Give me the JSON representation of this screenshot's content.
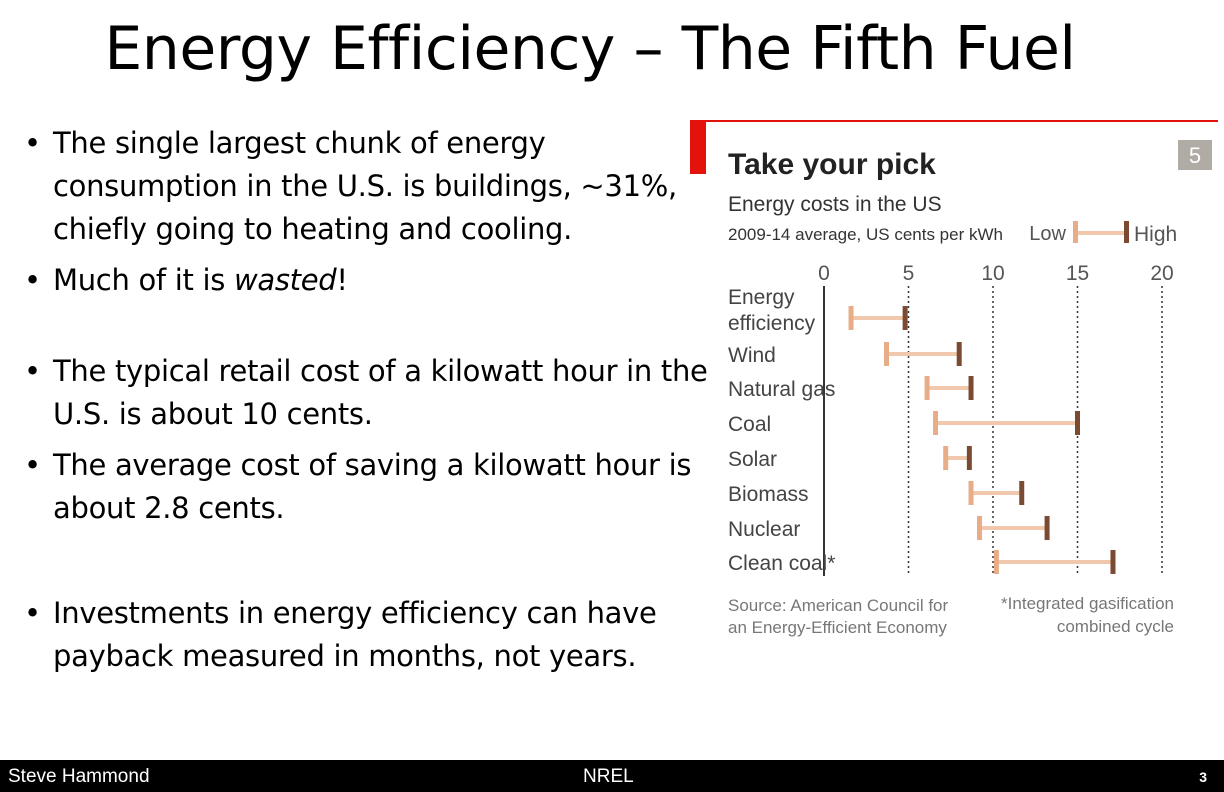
{
  "slide": {
    "title": "Energy Efficiency – The Fifth Fuel",
    "bullets": {
      "b1": "The single largest chunk of energy consumption in the U.S. is buildings, ~31%, chiefly going to heating and cooling.",
      "b2_pre": "Much of it is ",
      "b2_em": "wasted",
      "b2_post": "!",
      "b3": "The typical retail cost of a kilowatt hour in the U.S. is about 10 cents.",
      "b4": "The average cost of saving a kilowatt hour is about 2.8 cents.",
      "b5": "Investments in energy efficiency can have payback measured in months, not years."
    }
  },
  "footer": {
    "author": "Steve Hammond",
    "org": "NREL",
    "page": "3"
  },
  "chart_data": {
    "type": "range",
    "figure_number": "5",
    "title": "Take your pick",
    "subtitle": "Energy costs in the US",
    "units": "2009-14 average, US cents per kWh",
    "legend": {
      "low": "Low",
      "high": "High",
      "placement": "top-right"
    },
    "xlim": [
      0,
      20
    ],
    "xticks": [
      "0",
      "5",
      "10",
      "15",
      "20"
    ],
    "grid": true,
    "categories": [
      {
        "name": "Energy efficiency",
        "lines": [
          "Energy",
          "efficiency"
        ],
        "low": 1.6,
        "high": 4.8
      },
      {
        "name": "Wind",
        "lines": [
          "Wind"
        ],
        "low": 3.7,
        "high": 8.0
      },
      {
        "name": "Natural gas",
        "lines": [
          "Natural gas"
        ],
        "low": 6.1,
        "high": 8.7
      },
      {
        "name": "Coal",
        "lines": [
          "Coal"
        ],
        "low": 6.6,
        "high": 15.0
      },
      {
        "name": "Solar",
        "lines": [
          "Solar"
        ],
        "low": 7.2,
        "high": 8.6
      },
      {
        "name": "Biomass",
        "lines": [
          "Biomass"
        ],
        "low": 8.7,
        "high": 11.7
      },
      {
        "name": "Nuclear",
        "lines": [
          "Nuclear"
        ],
        "low": 9.2,
        "high": 13.2
      },
      {
        "name": "Clean coal*",
        "lines": [
          "Clean coal*"
        ],
        "low": 10.2,
        "high": 17.1
      }
    ],
    "source_lines": [
      "Source: American Council for",
      "an Energy-Efficient Economy"
    ],
    "footnote_lines": [
      "*Integrated gasification",
      "combined cycle"
    ],
    "colors": {
      "low": "#e8ad86",
      "high": "#7b4a32",
      "bar": "#f2c8ac",
      "accent": "#e3120b",
      "badge": "#b0aba5"
    }
  }
}
